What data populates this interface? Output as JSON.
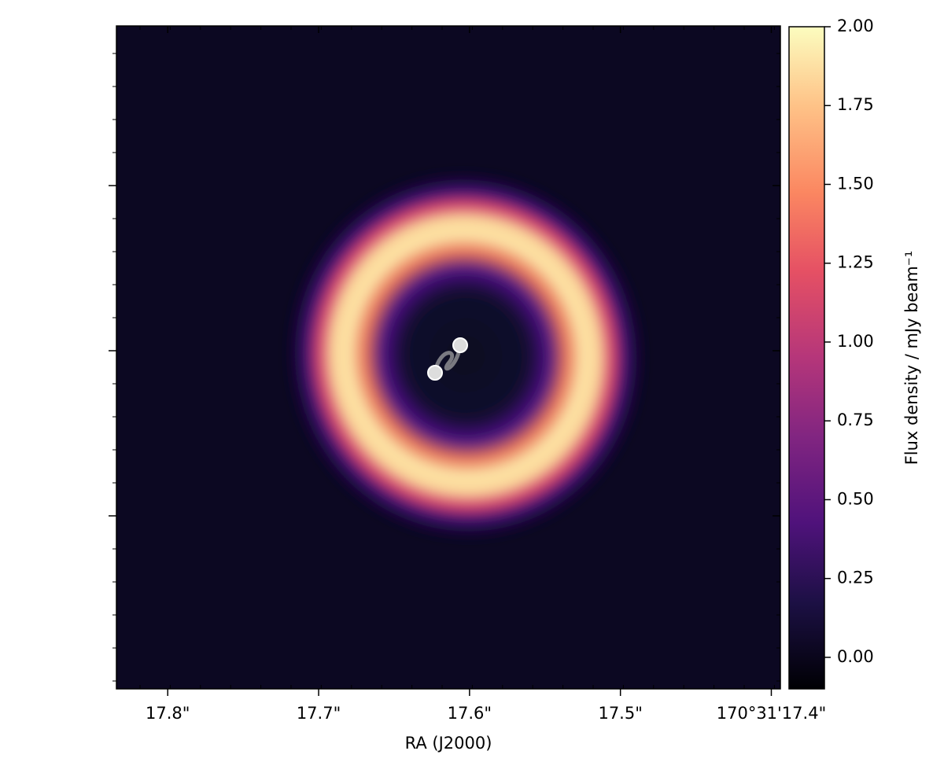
{
  "chart_data": {
    "type": "image",
    "xlabel": "RA (J2000)",
    "xlim": [
      17.834,
      17.394
    ],
    "xticks": [
      {
        "value": 17.8,
        "label": "17.8\""
      },
      {
        "value": 17.7,
        "label": "17.7\""
      },
      {
        "value": 17.6,
        "label": "17.6\""
      },
      {
        "value": 17.5,
        "label": "17.5\""
      },
      {
        "value": 17.4,
        "label": "170°31'17.4\""
      }
    ],
    "colorbar_label": "Flux density / mJy beam⁻¹",
    "colormap": "magma",
    "ylim": [
      -0.1,
      2.0
    ],
    "yticks": [
      {
        "value": 0,
        "label": "0.00"
      },
      0.25,
      {
        "value": 0.5,
        "label": "0.50"
      },
      0.75,
      {
        "value": 1,
        "label": "1.00"
      },
      1.25,
      {
        "value": 1.5,
        "label": "1.50"
      },
      1.75,
      {
        "value": 2,
        "label": "2.00"
      }
    ]
  }
}
